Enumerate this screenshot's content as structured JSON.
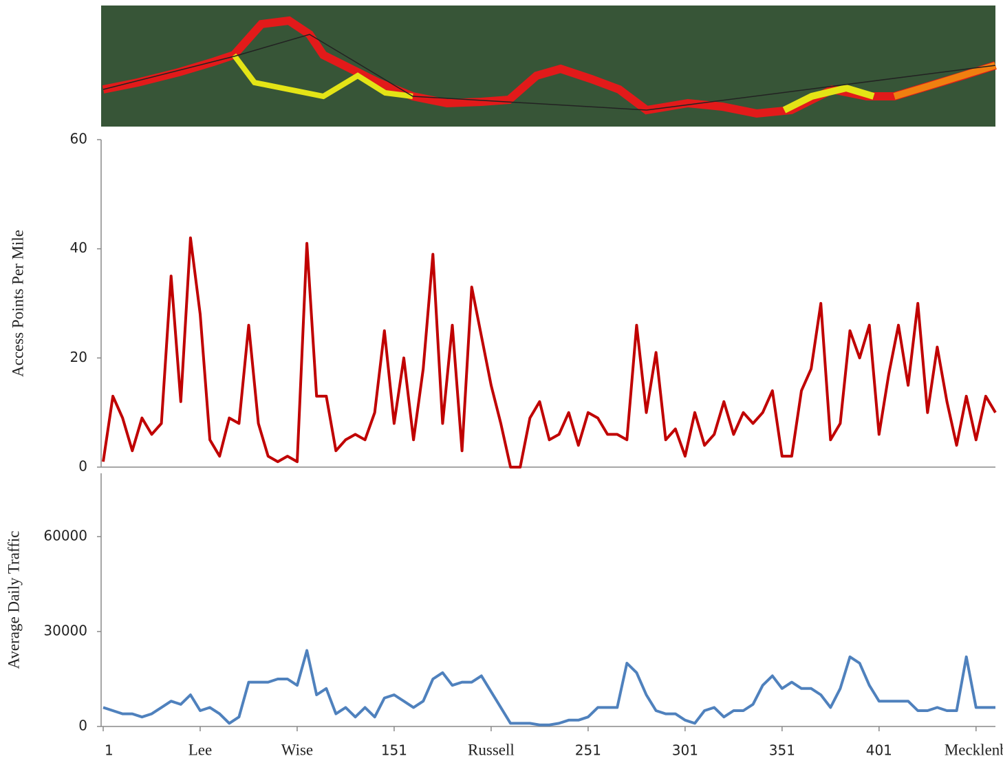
{
  "chart_data": [
    {
      "type": "line",
      "ylabel": "Access Points Per Mile",
      "color": "#c00000",
      "x": [
        1,
        6,
        11,
        16,
        21,
        26,
        31,
        36,
        41,
        46,
        51,
        56,
        61,
        66,
        71,
        76,
        81,
        86,
        91,
        96,
        101,
        106,
        111,
        116,
        121,
        126,
        131,
        136,
        141,
        146,
        151,
        156,
        161,
        166,
        171,
        176,
        181,
        186,
        191,
        196,
        201,
        206,
        211,
        216,
        221,
        226,
        231,
        236,
        241,
        246,
        251,
        256,
        261,
        266,
        271,
        276,
        281,
        286,
        291,
        296,
        301,
        306,
        311,
        316,
        321,
        326,
        331,
        336,
        341,
        346,
        351,
        356,
        361,
        366,
        371,
        376,
        381,
        386,
        391,
        396,
        401,
        406,
        411,
        416,
        421,
        426,
        431,
        436,
        441,
        446,
        451,
        456,
        461
      ],
      "values": [
        1,
        13,
        9,
        3,
        9,
        6,
        8,
        35,
        12,
        42,
        28,
        5,
        2,
        9,
        8,
        26,
        8,
        2,
        1,
        2,
        1,
        41,
        13,
        13,
        3,
        5,
        6,
        5,
        10,
        25,
        8,
        20,
        5,
        18,
        39,
        8,
        26,
        3,
        33,
        24,
        15,
        8,
        0,
        0,
        9,
        12,
        5,
        6,
        10,
        4,
        10,
        9,
        6,
        6,
        5,
        26,
        10,
        21,
        5,
        7,
        2,
        10,
        4,
        6,
        12,
        6,
        10,
        8,
        10,
        14,
        2,
        2,
        14,
        18,
        30,
        5,
        8,
        25,
        20,
        26,
        6,
        17,
        26,
        15,
        30,
        10,
        22,
        12,
        4,
        13,
        5,
        13,
        10
      ],
      "xlim": [
        1,
        461
      ],
      "ylim": [
        0,
        60
      ],
      "yticks": [
        0,
        20,
        40,
        60
      ]
    },
    {
      "type": "line",
      "ylabel": "Average Daily Traffic",
      "color": "#4f81bd",
      "x": [
        1,
        6,
        11,
        16,
        21,
        26,
        31,
        36,
        41,
        46,
        51,
        56,
        61,
        66,
        71,
        76,
        81,
        86,
        91,
        96,
        101,
        106,
        111,
        116,
        121,
        126,
        131,
        136,
        141,
        146,
        151,
        156,
        161,
        166,
        171,
        176,
        181,
        186,
        191,
        196,
        201,
        206,
        211,
        216,
        221,
        226,
        231,
        236,
        241,
        246,
        251,
        256,
        261,
        266,
        271,
        276,
        281,
        286,
        291,
        296,
        301,
        306,
        311,
        316,
        321,
        326,
        331,
        336,
        341,
        346,
        351,
        356,
        361,
        366,
        371,
        376,
        381,
        386,
        391,
        396,
        401,
        406,
        411,
        416,
        421,
        426,
        431,
        436,
        441,
        446,
        451,
        456,
        461
      ],
      "values": [
        6000,
        5000,
        4000,
        4000,
        3000,
        4000,
        6000,
        8000,
        7000,
        10000,
        5000,
        6000,
        4000,
        1000,
        3000,
        14000,
        14000,
        14000,
        15000,
        15000,
        13000,
        24000,
        10000,
        12000,
        4000,
        6000,
        3000,
        6000,
        3000,
        9000,
        10000,
        8000,
        6000,
        8000,
        15000,
        17000,
        13000,
        14000,
        14000,
        16000,
        11000,
        6000,
        1000,
        1000,
        1000,
        500,
        500,
        1000,
        2000,
        2000,
        3000,
        6000,
        6000,
        6000,
        20000,
        17000,
        10000,
        5000,
        4000,
        4000,
        2000,
        1000,
        5000,
        6000,
        3000,
        5000,
        5000,
        7000,
        13000,
        16000,
        12000,
        14000,
        12000,
        12000,
        10000,
        6000,
        12000,
        22000,
        20000,
        13000,
        8000,
        8000,
        8000,
        8000,
        5000,
        5000,
        6000,
        5000,
        5000,
        22000,
        6000,
        6000,
        6000
      ],
      "xlim": [
        1,
        461
      ],
      "ylim": [
        0,
        80000
      ],
      "yticks": [
        0,
        30000,
        60000
      ],
      "xticks": [
        1,
        {
          "value": 51,
          "label": "Lee"
        },
        {
          "value": 101,
          "label": "Wise"
        },
        151,
        {
          "value": 201,
          "label": "Russell"
        },
        251,
        301,
        351,
        401,
        {
          "value": 451,
          "label": "Mecklenb"
        }
      ]
    }
  ]
}
